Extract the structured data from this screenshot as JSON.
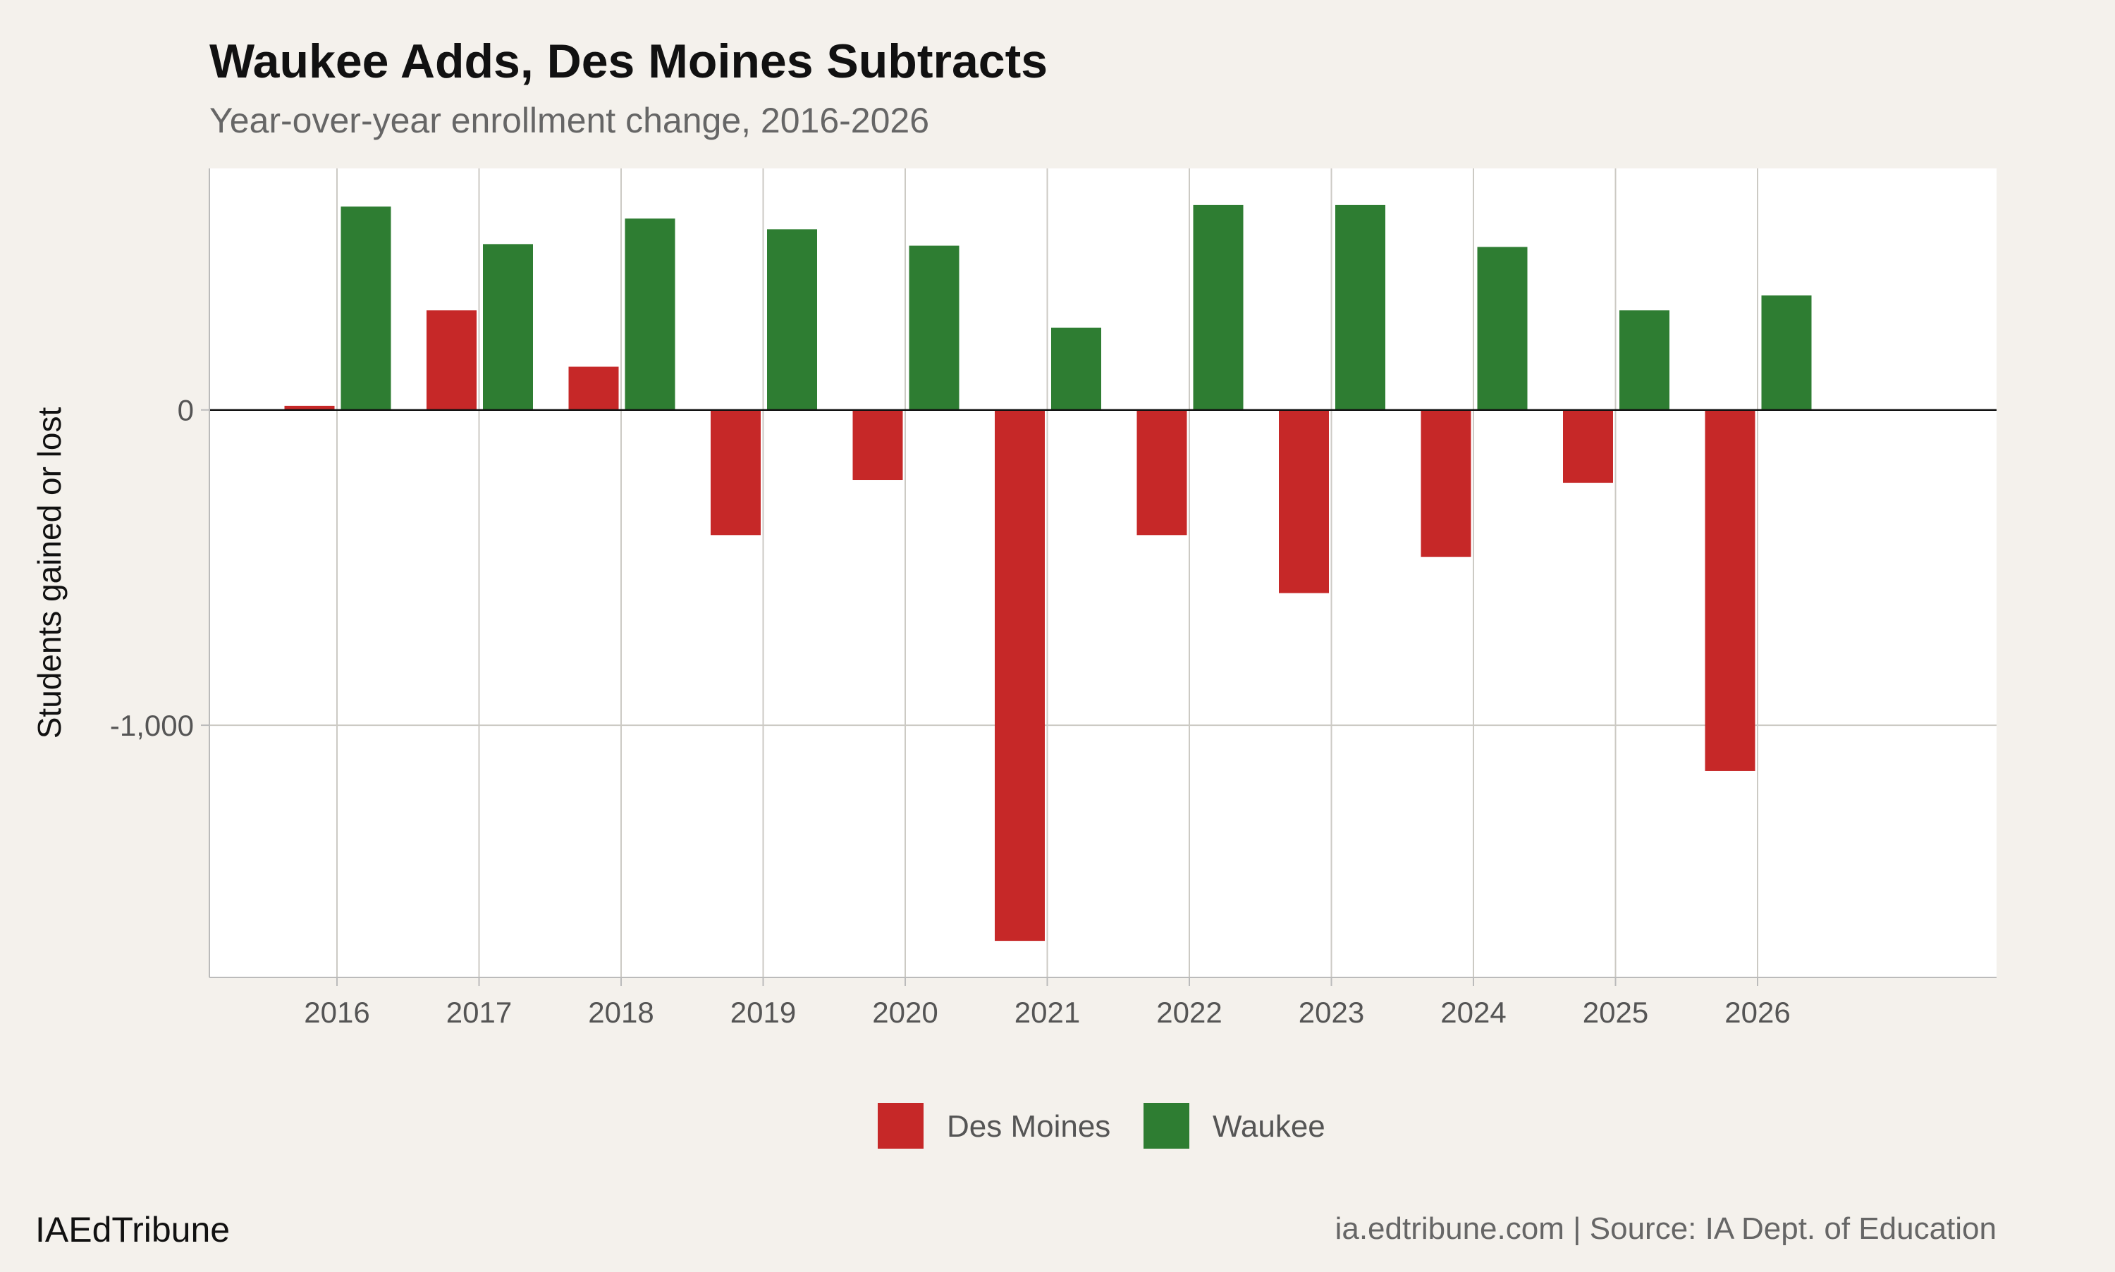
{
  "chart_data": {
    "type": "bar",
    "title": "Waukee Adds, Des Moines Subtracts",
    "subtitle": "Year-over-year enrollment change, 2016-2026",
    "xlabel": "",
    "ylabel": "Students gained or lost",
    "categories": [
      "2016",
      "2017",
      "2018",
      "2019",
      "2020",
      "2021",
      "2022",
      "2023",
      "2024",
      "2025",
      "2026"
    ],
    "series": [
      {
        "name": "Des Moines",
        "color": "#c62828",
        "values": [
          13,
          316,
          137,
          -397,
          -222,
          -1684,
          -397,
          -581,
          -466,
          -231,
          -1145
        ]
      },
      {
        "name": "Waukee",
        "color": "#2e7d32",
        "values": [
          645,
          526,
          607,
          573,
          521,
          261,
          650,
          650,
          517,
          316,
          363
        ]
      }
    ],
    "yticks": [
      {
        "value": 0,
        "label": "0"
      },
      {
        "value": -1000,
        "label": "-1,000"
      }
    ],
    "ylim": [
      -1800,
      766
    ],
    "grid": true,
    "legend_position": "bottom"
  },
  "footer": {
    "brand": "IAEdTribune",
    "source": "ia.edtribune.com | Source: IA Dept. of Education"
  }
}
